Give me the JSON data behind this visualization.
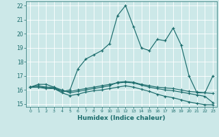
{
  "xlabel": "Humidex (Indice chaleur)",
  "xlim": [
    -0.5,
    23.5
  ],
  "ylim": [
    14.8,
    22.3
  ],
  "yticks": [
    15,
    16,
    17,
    18,
    19,
    20,
    21,
    22
  ],
  "xticks": [
    0,
    1,
    2,
    3,
    4,
    5,
    6,
    7,
    8,
    9,
    10,
    11,
    12,
    13,
    14,
    15,
    16,
    17,
    18,
    19,
    20,
    21,
    22,
    23
  ],
  "bg_color": "#cce8e8",
  "line_color": "#1a6b6b",
  "lines": [
    [
      16.2,
      16.4,
      16.4,
      16.2,
      15.9,
      16.0,
      17.5,
      18.2,
      18.5,
      18.8,
      19.3,
      21.3,
      22.0,
      20.5,
      19.0,
      18.8,
      19.6,
      19.5,
      20.4,
      19.2,
      17.0,
      15.8,
      15.8,
      17.0
    ],
    [
      16.2,
      16.3,
      16.2,
      16.2,
      16.0,
      15.8,
      15.9,
      16.0,
      16.1,
      16.2,
      16.3,
      16.55,
      16.6,
      16.55,
      16.4,
      16.3,
      16.2,
      16.15,
      16.1,
      16.0,
      15.9,
      15.85,
      15.8,
      15.75
    ],
    [
      16.2,
      16.2,
      16.2,
      16.1,
      15.9,
      15.9,
      16.0,
      16.1,
      16.2,
      16.3,
      16.4,
      16.5,
      16.55,
      16.5,
      16.35,
      16.2,
      16.1,
      16.0,
      15.95,
      15.85,
      15.75,
      15.65,
      15.55,
      15.1
    ],
    [
      16.2,
      16.2,
      16.1,
      16.1,
      15.8,
      15.6,
      15.7,
      15.85,
      15.95,
      16.0,
      16.1,
      16.2,
      16.3,
      16.2,
      16.05,
      15.9,
      15.7,
      15.55,
      15.45,
      15.3,
      15.15,
      15.05,
      14.95,
      14.95
    ]
  ]
}
